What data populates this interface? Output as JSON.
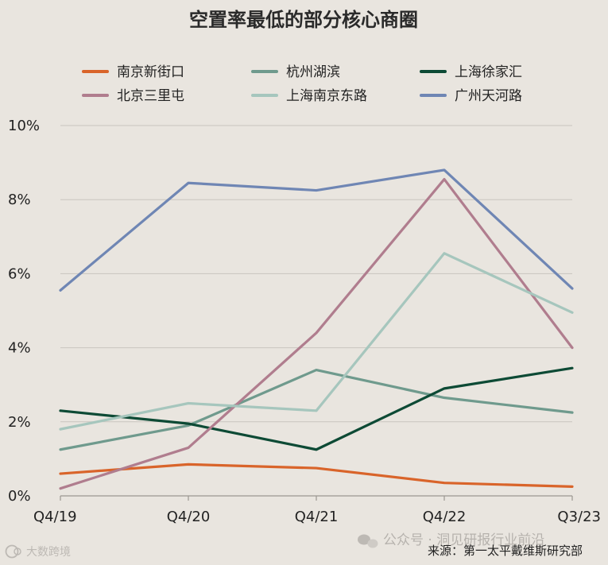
{
  "chart_data": {
    "type": "line",
    "title": "空置率最低的部分核心商圈",
    "categories": [
      "Q4/19",
      "Q4/20",
      "Q4/21",
      "Q4/22",
      "Q3/23"
    ],
    "ylim": [
      0,
      10
    ],
    "yticks": [
      "0%",
      "2%",
      "4%",
      "6%",
      "8%",
      "10%"
    ],
    "grid": true,
    "legend_position": "top",
    "series": [
      {
        "name": "南京新街口",
        "color": "#d9642a",
        "values": [
          0.6,
          0.85,
          0.75,
          0.35,
          0.25
        ]
      },
      {
        "name": "杭州湖滨",
        "color": "#6f9a8d",
        "values": [
          1.25,
          1.9,
          3.4,
          2.65,
          2.25
        ]
      },
      {
        "name": "上海徐家汇",
        "color": "#0d4a35",
        "values": [
          2.3,
          1.95,
          1.25,
          2.9,
          3.45
        ]
      },
      {
        "name": "北京三里屯",
        "color": "#b07d8e",
        "values": [
          0.2,
          1.3,
          4.4,
          8.55,
          4.0
        ]
      },
      {
        "name": "上海南京东路",
        "color": "#a6c6bd",
        "values": [
          1.8,
          2.5,
          2.3,
          6.55,
          4.95
        ]
      },
      {
        "name": "广州天河路",
        "color": "#6f86b4",
        "values": [
          5.55,
          8.45,
          8.25,
          8.8,
          5.6
        ]
      }
    ]
  },
  "source": "来源：第一太平戴维斯研究部",
  "watermark": "公众号 · 洞见研报行业前沿",
  "corner_mark": "大数跨境"
}
